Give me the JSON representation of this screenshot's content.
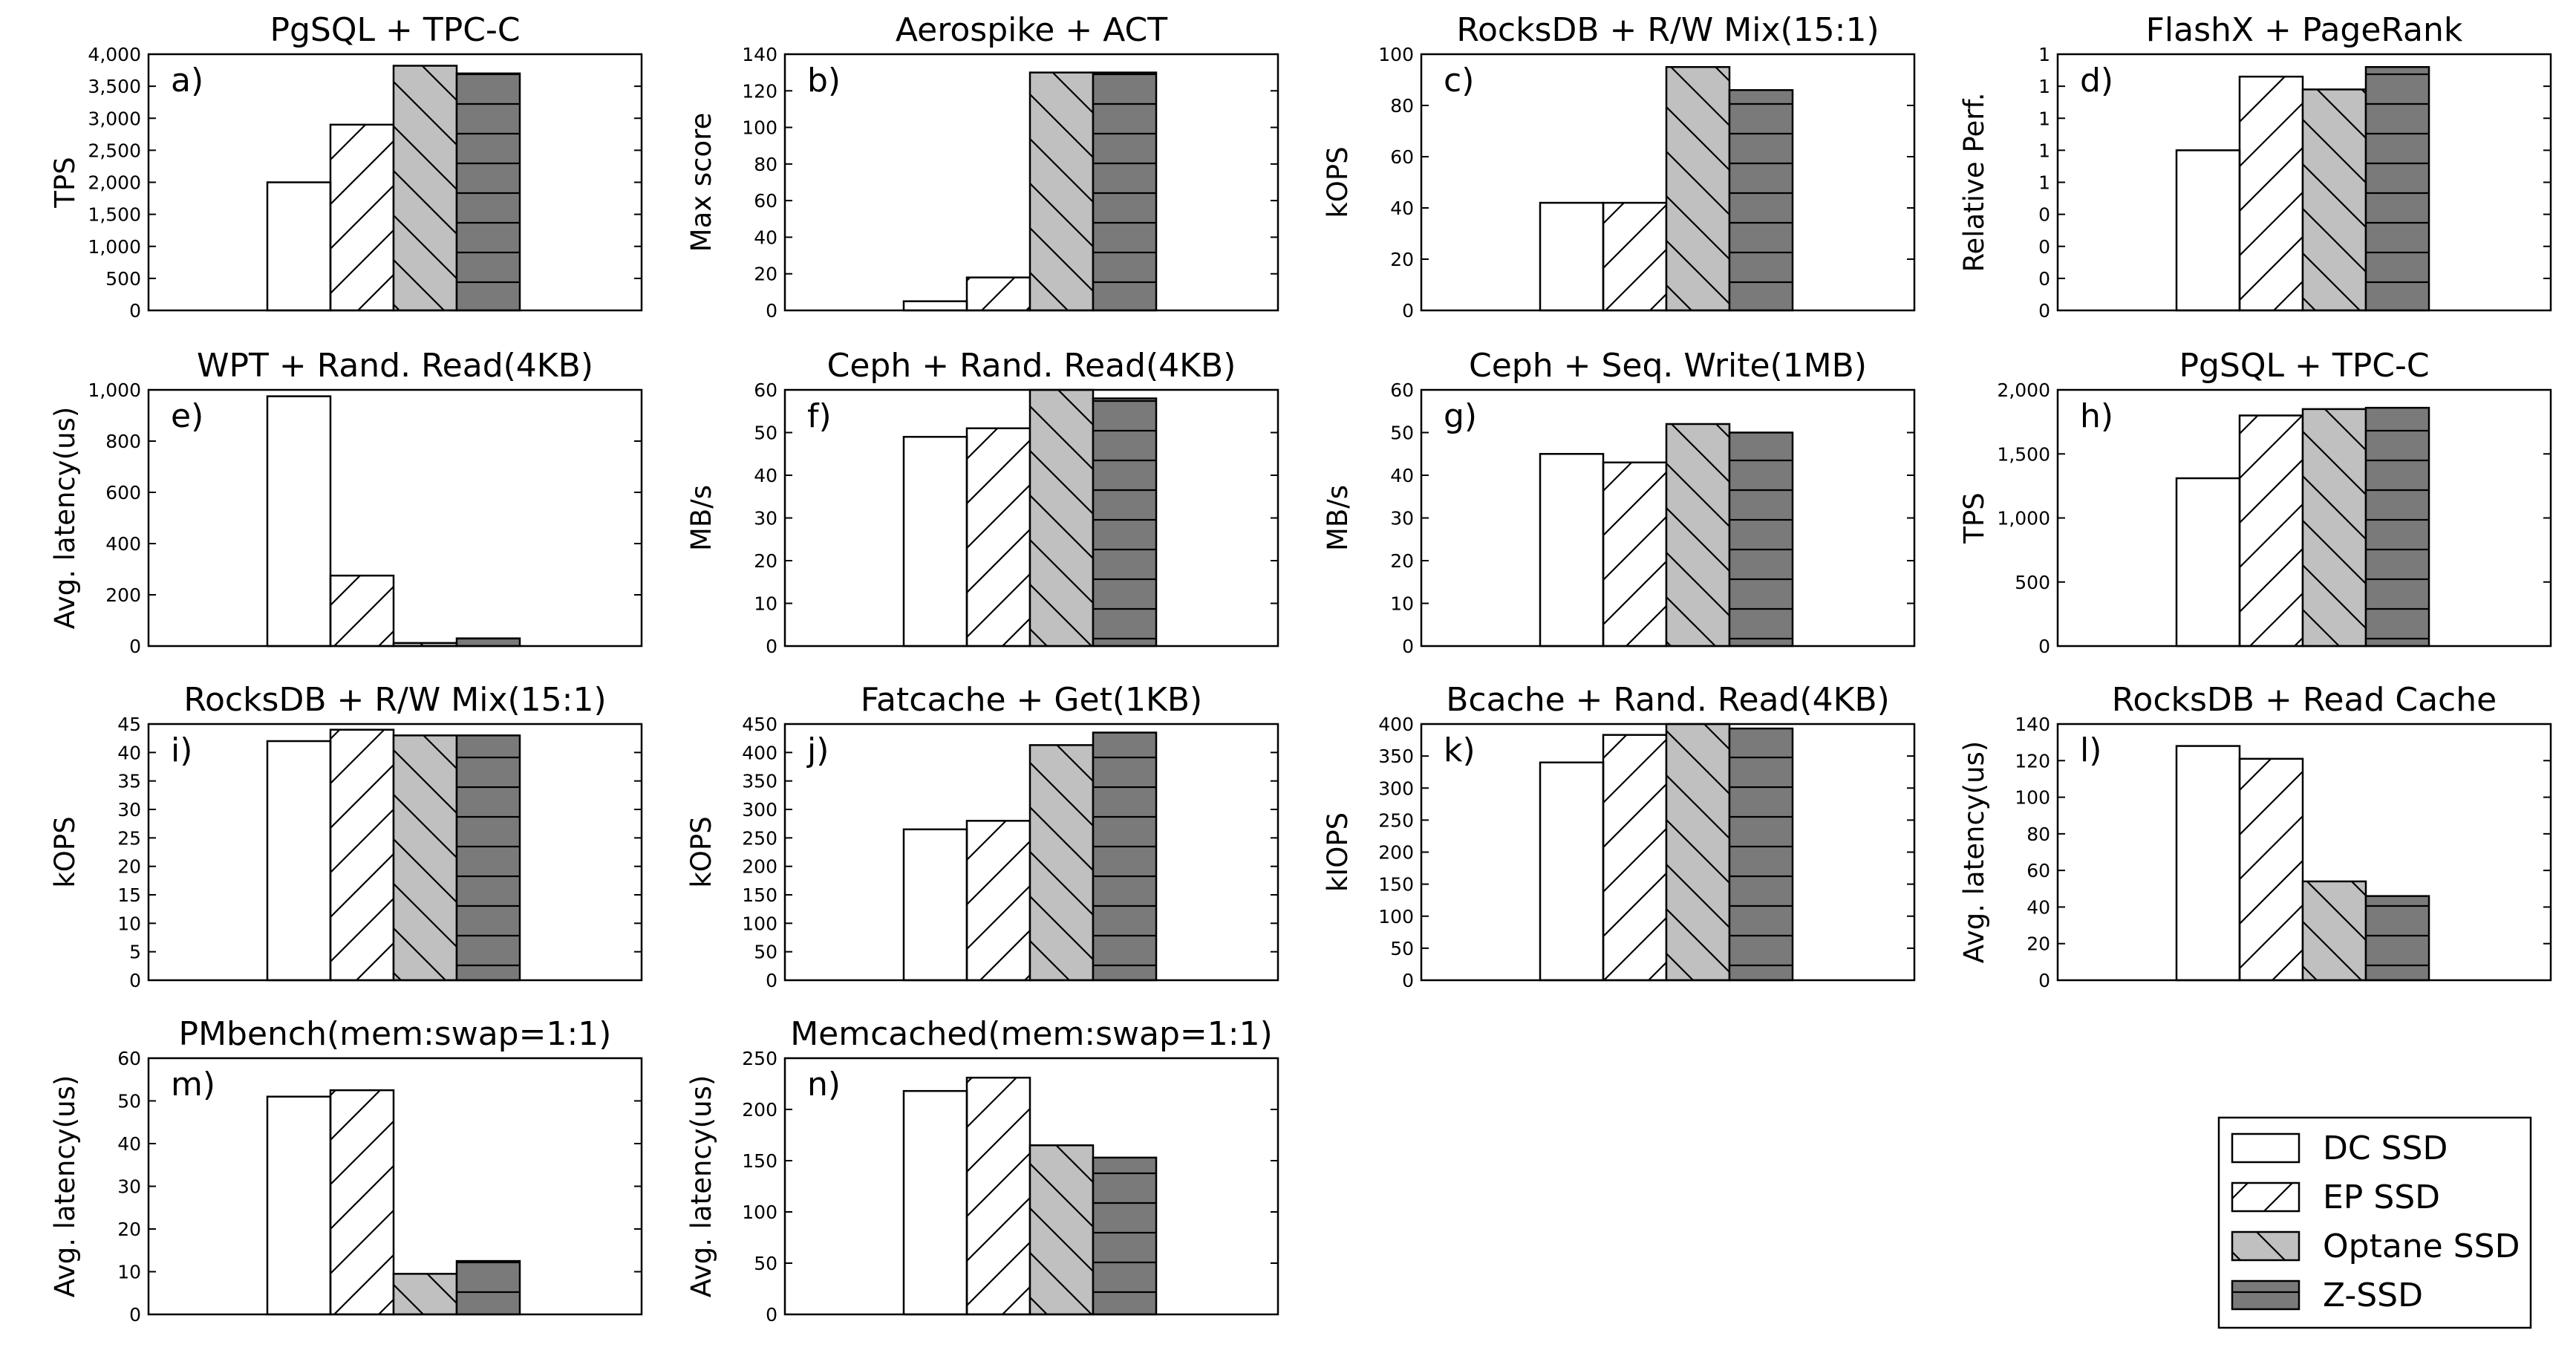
{
  "figure": {
    "legend": [
      {
        "name": "DC SSD",
        "fill": "#ffffff",
        "hatch": "none"
      },
      {
        "name": "EP SSD",
        "fill": "#ffffff",
        "hatch": "slash"
      },
      {
        "name": "Optane SSD",
        "fill": "#c0c0c0",
        "hatch": "backslash"
      },
      {
        "name": "Z-SSD",
        "fill": "#7a7a7a",
        "hatch": "horizontal"
      }
    ],
    "colors": {
      "dc": "#ffffff",
      "ep": "#ffffff",
      "optane": "#c0c0c0",
      "zssd": "#7a7a7a"
    }
  },
  "chart_data": [
    {
      "type": "bar",
      "label": "a)",
      "title": "PgSQL + TPC-C",
      "ylabel": "TPS",
      "ylim": [
        0,
        4000
      ],
      "ticks": [
        "0",
        "500",
        "1,000",
        "1,500",
        "2,000",
        "2,500",
        "3,000",
        "3,500",
        "4,000"
      ],
      "series": [
        {
          "name": "DC SSD",
          "value": 2000
        },
        {
          "name": "EP SSD",
          "value": 2900
        },
        {
          "name": "Optane SSD",
          "value": 3820
        },
        {
          "name": "Z-SSD",
          "value": 3700
        }
      ]
    },
    {
      "type": "bar",
      "label": "b)",
      "title": "Aerospike + ACT",
      "ylabel": "Max score",
      "ylim": [
        0,
        140
      ],
      "ticks": [
        "0",
        "20",
        "40",
        "60",
        "80",
        "100",
        "120",
        "140"
      ],
      "series": [
        {
          "name": "DC SSD",
          "value": 5
        },
        {
          "name": "EP SSD",
          "value": 18
        },
        {
          "name": "Optane SSD",
          "value": 130
        },
        {
          "name": "Z-SSD",
          "value": 130
        }
      ]
    },
    {
      "type": "bar",
      "label": "c)",
      "title": "RocksDB + R/W Mix(15:1)",
      "ylabel": "kOPS",
      "ylim": [
        0,
        100
      ],
      "ticks": [
        "0",
        "20",
        "40",
        "60",
        "80",
        "100"
      ],
      "series": [
        {
          "name": "DC SSD",
          "value": 42
        },
        {
          "name": "EP SSD",
          "value": 42
        },
        {
          "name": "Optane SSD",
          "value": 95
        },
        {
          "name": "Z-SSD",
          "value": 86
        }
      ]
    },
    {
      "type": "bar",
      "label": "d)",
      "title": "FlashX + PageRank",
      "ylabel": "Relative Perf.",
      "ylim": [
        0,
        1.6
      ],
      "ticks": [
        "0",
        "0",
        "0",
        "0",
        "1",
        "1",
        "1",
        "1",
        "1"
      ],
      "series": [
        {
          "name": "DC SSD",
          "value": 1.0
        },
        {
          "name": "EP SSD",
          "value": 1.46
        },
        {
          "name": "Optane SSD",
          "value": 1.38
        },
        {
          "name": "Z-SSD",
          "value": 1.52
        }
      ]
    },
    {
      "type": "bar",
      "label": "e)",
      "title": "WPT + Rand. Read(4KB)",
      "ylabel": "Avg. latency(us)",
      "ylim": [
        0,
        1000
      ],
      "ticks": [
        "0",
        "200",
        "400",
        "600",
        "800",
        "1,000"
      ],
      "series": [
        {
          "name": "DC SSD",
          "value": 975
        },
        {
          "name": "EP SSD",
          "value": 275
        },
        {
          "name": "Optane SSD",
          "value": 12
        },
        {
          "name": "Z-SSD",
          "value": 30
        }
      ]
    },
    {
      "type": "bar",
      "label": "f)",
      "title": "Ceph + Rand. Read(4KB)",
      "ylabel": "MB/s",
      "ylim": [
        0,
        60
      ],
      "ticks": [
        "0",
        "10",
        "20",
        "30",
        "40",
        "50",
        "60"
      ],
      "series": [
        {
          "name": "DC SSD",
          "value": 49
        },
        {
          "name": "EP SSD",
          "value": 51
        },
        {
          "name": "Optane SSD",
          "value": 60
        },
        {
          "name": "Z-SSD",
          "value": 58
        }
      ]
    },
    {
      "type": "bar",
      "label": "g)",
      "title": "Ceph + Seq. Write(1MB)",
      "ylabel": "MB/s",
      "ylim": [
        0,
        60
      ],
      "ticks": [
        "0",
        "10",
        "20",
        "30",
        "40",
        "50",
        "60"
      ],
      "series": [
        {
          "name": "DC SSD",
          "value": 45
        },
        {
          "name": "EP SSD",
          "value": 43
        },
        {
          "name": "Optane SSD",
          "value": 52
        },
        {
          "name": "Z-SSD",
          "value": 50
        }
      ]
    },
    {
      "type": "bar",
      "label": "h)",
      "title": "PgSQL + TPC-C",
      "ylabel": "TPS",
      "ylim": [
        0,
        2000
      ],
      "ticks": [
        "0",
        "500",
        "1,000",
        "1,500",
        "2,000"
      ],
      "series": [
        {
          "name": "DC SSD",
          "value": 1310
        },
        {
          "name": "EP SSD",
          "value": 1800
        },
        {
          "name": "Optane SSD",
          "value": 1850
        },
        {
          "name": "Z-SSD",
          "value": 1860
        }
      ]
    },
    {
      "type": "bar",
      "label": "i)",
      "title": "RocksDB + R/W Mix(15:1)",
      "ylabel": "kOPS",
      "ylim": [
        0,
        45
      ],
      "ticks": [
        "0",
        "5",
        "10",
        "15",
        "20",
        "25",
        "30",
        "35",
        "40",
        "45"
      ],
      "series": [
        {
          "name": "DC SSD",
          "value": 42
        },
        {
          "name": "EP SSD",
          "value": 44
        },
        {
          "name": "Optane SSD",
          "value": 43
        },
        {
          "name": "Z-SSD",
          "value": 43
        }
      ]
    },
    {
      "type": "bar",
      "label": "j)",
      "title": "Fatcache + Get(1KB)",
      "ylabel": "kOPS",
      "ylim": [
        0,
        450
      ],
      "ticks": [
        "0",
        "50",
        "100",
        "150",
        "200",
        "250",
        "300",
        "350",
        "400",
        "450"
      ],
      "series": [
        {
          "name": "DC SSD",
          "value": 265
        },
        {
          "name": "EP SSD",
          "value": 280
        },
        {
          "name": "Optane SSD",
          "value": 413
        },
        {
          "name": "Z-SSD",
          "value": 435
        }
      ]
    },
    {
      "type": "bar",
      "label": "k)",
      "title": "Bcache + Rand. Read(4KB)",
      "ylabel": "kIOPS",
      "ylim": [
        0,
        400
      ],
      "ticks": [
        "0",
        "50",
        "100",
        "150",
        "200",
        "250",
        "300",
        "350",
        "400"
      ],
      "series": [
        {
          "name": "DC SSD",
          "value": 340
        },
        {
          "name": "EP SSD",
          "value": 383
        },
        {
          "name": "Optane SSD",
          "value": 400
        },
        {
          "name": "Z-SSD",
          "value": 393
        }
      ]
    },
    {
      "type": "bar",
      "label": "l)",
      "title": "RocksDB + Read Cache",
      "ylabel": "Avg. latency(us)",
      "ylim": [
        0,
        140
      ],
      "ticks": [
        "0",
        "20",
        "40",
        "60",
        "80",
        "100",
        "120",
        "140"
      ],
      "series": [
        {
          "name": "DC SSD",
          "value": 128
        },
        {
          "name": "EP SSD",
          "value": 121
        },
        {
          "name": "Optane SSD",
          "value": 54
        },
        {
          "name": "Z-SSD",
          "value": 46
        }
      ]
    },
    {
      "type": "bar",
      "label": "m)",
      "title": "PMbench(mem:swap=1:1)",
      "ylabel": "Avg. latency(us)",
      "ylim": [
        0,
        60
      ],
      "ticks": [
        "0",
        "10",
        "20",
        "30",
        "40",
        "50",
        "60"
      ],
      "series": [
        {
          "name": "DC SSD",
          "value": 51
        },
        {
          "name": "EP SSD",
          "value": 52.5
        },
        {
          "name": "Optane SSD",
          "value": 9.5
        },
        {
          "name": "Z-SSD",
          "value": 12.5
        }
      ]
    },
    {
      "type": "bar",
      "label": "n)",
      "title": "Memcached(mem:swap=1:1)",
      "ylabel": "Avg. latency(us)",
      "ylim": [
        0,
        250
      ],
      "ticks": [
        "0",
        "50",
        "100",
        "150",
        "200",
        "250"
      ],
      "series": [
        {
          "name": "DC SSD",
          "value": 218
        },
        {
          "name": "EP SSD",
          "value": 231
        },
        {
          "name": "Optane SSD",
          "value": 165
        },
        {
          "name": "Z-SSD",
          "value": 153
        }
      ]
    }
  ]
}
